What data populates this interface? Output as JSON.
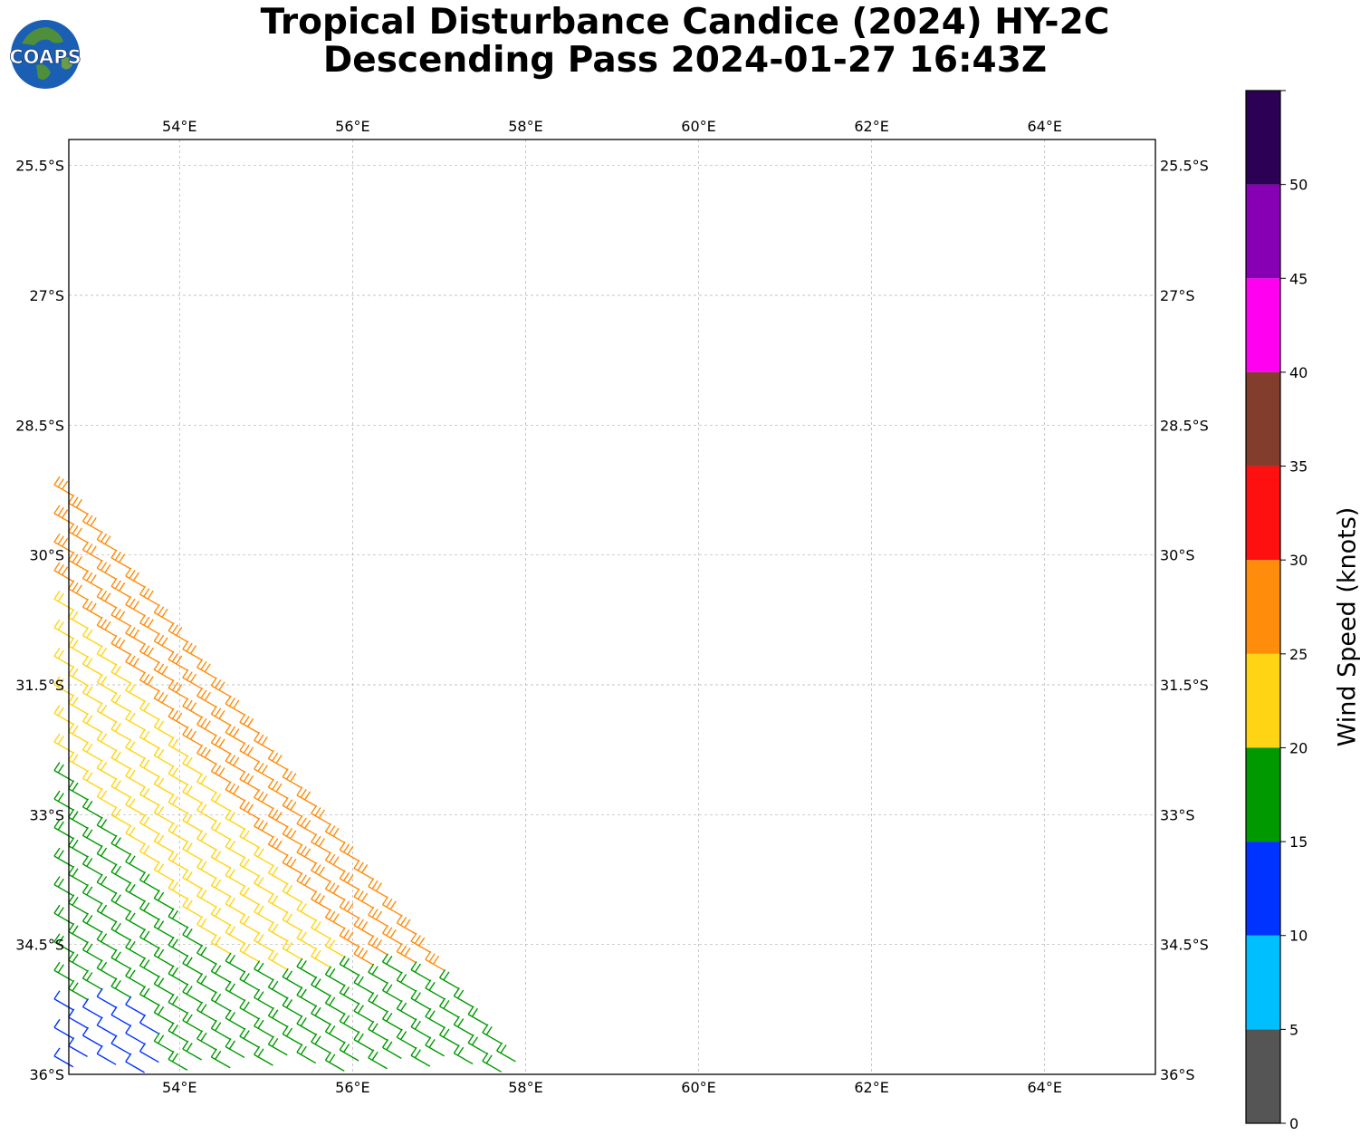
{
  "header": {
    "title_line1": "Tropical Disturbance Candice (2024) HY-2C",
    "title_line2": "Descending Pass 2024-01-27 16:43Z",
    "logo_text": "COAPS"
  },
  "map": {
    "lon_range": [
      52.72,
      65.28
    ],
    "lat_range": [
      -36.0,
      -25.2
    ],
    "lon_ticks": [
      "54°E",
      "56°E",
      "58°E",
      "60°E",
      "62°E",
      "64°E"
    ],
    "lon_tick_values": [
      54,
      56,
      58,
      60,
      62,
      64
    ],
    "lat_ticks": [
      "25.5°S",
      "27°S",
      "28.5°S",
      "30°S",
      "31.5°S",
      "33°S",
      "34.5°S",
      "36°S"
    ],
    "lat_tick_values": [
      -25.5,
      -27,
      -28.5,
      -30,
      -31.5,
      -33,
      -34.5,
      -36
    ],
    "grid": true,
    "grid_color": "#b0b0b0",
    "wind_barbs": {
      "swath_edge": [
        [
          52.72,
          -29.25
        ],
        [
          58.0,
          -36.0
        ]
      ],
      "first_row": [
        [
          52.72,
          -29.25
        ],
        [
          52.72,
          -36.0
        ]
      ],
      "along_track_step_lon": 0.165,
      "across_track_step_lat": 0.33,
      "direction_deg": 300,
      "note_colors": "colored by wind speed in knots"
    }
  },
  "colorbar": {
    "label": "Wind Speed (knots)",
    "ticks": [
      "0",
      "5",
      "10",
      "15",
      "20",
      "25",
      "30",
      "35",
      "40",
      "45",
      "50"
    ],
    "bins": [
      {
        "from": 0,
        "to": 5,
        "color": "#555555"
      },
      {
        "from": 5,
        "to": 10,
        "color": "#00bfff"
      },
      {
        "from": 10,
        "to": 15,
        "color": "#0033ff"
      },
      {
        "from": 15,
        "to": 20,
        "color": "#009900"
      },
      {
        "from": 20,
        "to": 25,
        "color": "#ffd414"
      },
      {
        "from": 25,
        "to": 30,
        "color": "#ff8c0a"
      },
      {
        "from": 30,
        "to": 35,
        "color": "#ff1010"
      },
      {
        "from": 35,
        "to": 40,
        "color": "#833d2c"
      },
      {
        "from": 40,
        "to": 45,
        "color": "#ff00f0"
      },
      {
        "from": 45,
        "to": 50,
        "color": "#8800b4"
      },
      {
        "from": 50,
        "to": 55,
        "color": "#2b0055"
      }
    ]
  }
}
